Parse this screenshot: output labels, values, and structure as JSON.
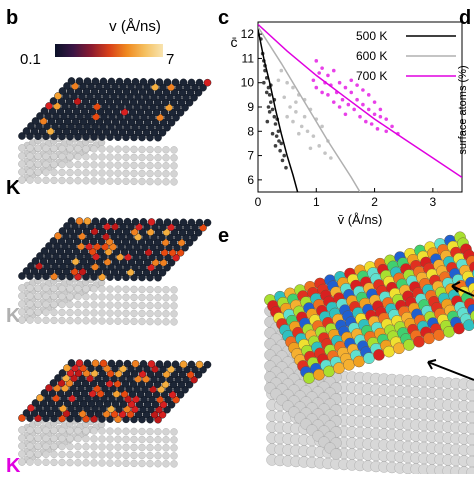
{
  "panels": {
    "b": "b",
    "c": "c",
    "d": "d",
    "e": "e"
  },
  "colorbar": {
    "label": "v (Å/ns)",
    "min_label": "0.1",
    "max_label": "7"
  },
  "temp_labels": [
    "K",
    "K",
    "K"
  ],
  "colors": {
    "t500": "#000000",
    "t600": "#b0b0b0",
    "t700": "#e000e0",
    "slab_dark": "#1c2535",
    "slab_gray": "#c8c8c8"
  },
  "panel_d": {
    "ylabel": "surface atoms (%)"
  },
  "chart_data": {
    "type": "scatter",
    "xlabel": "v̄ (Å/ns)",
    "ylabel": "c̄",
    "xlim": [
      0,
      3.5
    ],
    "ylim": [
      5.5,
      12.5
    ],
    "xticks": [
      "0",
      "1",
      "2",
      "3"
    ],
    "yticks": [
      "6",
      "7",
      "8",
      "9",
      "10",
      "11",
      "12"
    ],
    "legend_position": "top-right",
    "series": [
      {
        "name": "500 K",
        "color": "#000000",
        "points": [
          [
            0.05,
            11.8
          ],
          [
            0.08,
            11.2
          ],
          [
            0.1,
            10.9
          ],
          [
            0.12,
            10.5
          ],
          [
            0.15,
            10.2
          ],
          [
            0.18,
            9.8
          ],
          [
            0.2,
            9.5
          ],
          [
            0.22,
            9.2
          ],
          [
            0.1,
            10.0
          ],
          [
            0.15,
            9.6
          ],
          [
            0.25,
            8.9
          ],
          [
            0.28,
            8.6
          ],
          [
            0.3,
            8.3
          ],
          [
            0.2,
            8.8
          ],
          [
            0.35,
            8.0
          ],
          [
            0.18,
            9.0
          ],
          [
            0.32,
            7.8
          ],
          [
            0.4,
            7.5
          ],
          [
            0.25,
            7.9
          ],
          [
            0.38,
            7.2
          ],
          [
            0.45,
            7.0
          ],
          [
            0.3,
            7.4
          ],
          [
            0.42,
            6.8
          ],
          [
            0.12,
            10.7
          ],
          [
            0.22,
            9.9
          ],
          [
            0.28,
            9.3
          ],
          [
            0.33,
            8.5
          ],
          [
            0.36,
            7.6
          ],
          [
            0.48,
            6.5
          ],
          [
            0.16,
            8.4
          ]
        ],
        "fit": [
          [
            0.0,
            12.2
          ],
          [
            0.1,
            11.0
          ],
          [
            0.2,
            10.0
          ],
          [
            0.3,
            8.9
          ],
          [
            0.4,
            7.9
          ],
          [
            0.5,
            7.0
          ],
          [
            0.6,
            6.2
          ],
          [
            0.68,
            5.5
          ]
        ]
      },
      {
        "name": "600 K",
        "color": "#b0b0b0",
        "points": [
          [
            0.4,
            10.5
          ],
          [
            0.5,
            10.0
          ],
          [
            0.6,
            9.8
          ],
          [
            0.7,
            9.5
          ],
          [
            0.8,
            9.3
          ],
          [
            0.55,
            9.0
          ],
          [
            0.65,
            8.8
          ],
          [
            0.9,
            8.9
          ],
          [
            1.0,
            8.5
          ],
          [
            0.75,
            8.2
          ],
          [
            0.85,
            8.0
          ],
          [
            1.1,
            8.2
          ],
          [
            0.95,
            7.8
          ],
          [
            1.2,
            7.6
          ],
          [
            0.6,
            8.4
          ],
          [
            0.7,
            7.9
          ],
          [
            1.05,
            7.4
          ],
          [
            0.45,
            9.4
          ],
          [
            0.8,
            8.6
          ],
          [
            1.15,
            7.1
          ],
          [
            0.5,
            8.6
          ],
          [
            0.9,
            7.3
          ],
          [
            1.25,
            6.9
          ],
          [
            0.35,
            10.1
          ],
          [
            0.65,
            9.2
          ]
        ],
        "fit": [
          [
            0.0,
            12.3
          ],
          [
            0.4,
            10.8
          ],
          [
            0.8,
            9.2
          ],
          [
            1.2,
            7.6
          ],
          [
            1.6,
            6.1
          ],
          [
            1.75,
            5.5
          ]
        ]
      },
      {
        "name": "700 K",
        "color": "#e000e0",
        "points": [
          [
            1.0,
            10.9
          ],
          [
            1.1,
            10.6
          ],
          [
            1.2,
            10.3
          ],
          [
            1.3,
            10.5
          ],
          [
            1.4,
            10.0
          ],
          [
            1.5,
            9.8
          ],
          [
            1.6,
            9.6
          ],
          [
            1.7,
            9.3
          ],
          [
            1.8,
            9.1
          ],
          [
            1.9,
            8.9
          ],
          [
            2.0,
            8.7
          ],
          [
            2.1,
            8.6
          ],
          [
            1.25,
            9.9
          ],
          [
            1.35,
            9.6
          ],
          [
            1.45,
            9.3
          ],
          [
            1.55,
            9.1
          ],
          [
            1.65,
            8.9
          ],
          [
            1.75,
            8.6
          ],
          [
            1.85,
            8.4
          ],
          [
            1.95,
            8.3
          ],
          [
            2.05,
            8.1
          ],
          [
            2.2,
            8.0
          ],
          [
            1.15,
            10.0
          ],
          [
            1.05,
            10.4
          ],
          [
            1.6,
            10.1
          ],
          [
            1.7,
            9.9
          ],
          [
            1.8,
            9.7
          ],
          [
            1.9,
            9.5
          ],
          [
            2.0,
            9.2
          ],
          [
            2.1,
            8.9
          ],
          [
            2.2,
            8.5
          ],
          [
            2.3,
            8.2
          ],
          [
            1.5,
            8.7
          ],
          [
            1.4,
            9.0
          ],
          [
            1.3,
            9.2
          ],
          [
            1.2,
            9.5
          ],
          [
            2.4,
            7.9
          ],
          [
            0.95,
            10.1
          ],
          [
            1.0,
            9.8
          ],
          [
            1.1,
            9.6
          ]
        ],
        "fit": [
          [
            0.0,
            12.4
          ],
          [
            0.5,
            11.3
          ],
          [
            1.0,
            10.3
          ],
          [
            1.5,
            9.4
          ],
          [
            2.0,
            8.5
          ],
          [
            2.5,
            7.7
          ],
          [
            3.0,
            6.9
          ],
          [
            3.5,
            6.1
          ]
        ]
      }
    ]
  }
}
